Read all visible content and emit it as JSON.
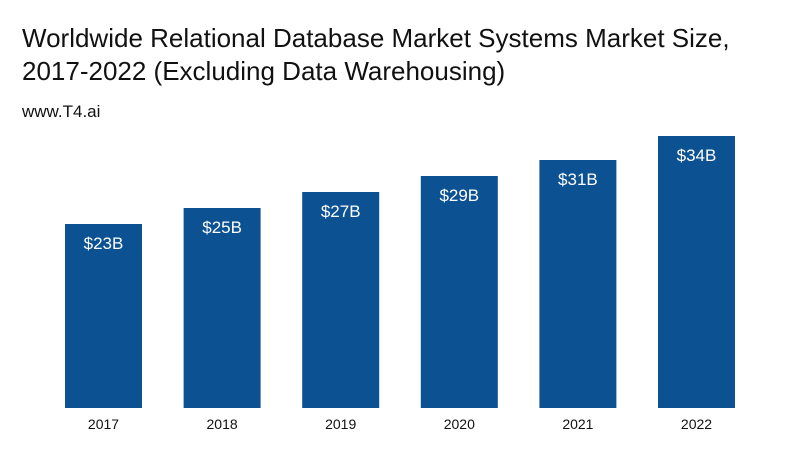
{
  "chart_data": {
    "type": "bar",
    "title": "Worldwide Relational Database Market Systems Market Size, 2017-2022 (Excluding Data Warehousing)",
    "subtitle": "www.T4.ai",
    "categories": [
      "2017",
      "2018",
      "2019",
      "2020",
      "2021",
      "2022"
    ],
    "values": [
      23,
      25,
      27,
      29,
      31,
      34
    ],
    "data_labels": [
      "$23B",
      "$25B",
      "$27B",
      "$29B",
      "$31B",
      "$34B"
    ],
    "xlabel": "",
    "ylabel": "",
    "ylim": [
      0,
      34
    ],
    "grid": false,
    "bar_color": "#0c5192"
  }
}
